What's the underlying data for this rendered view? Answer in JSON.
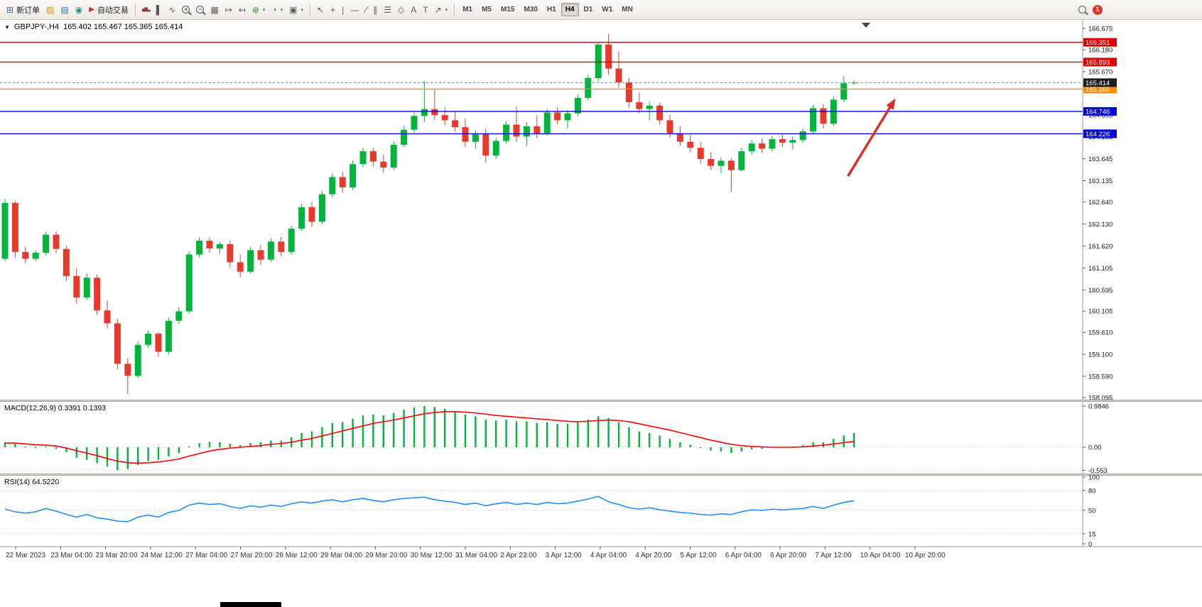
{
  "toolbar": {
    "new_order_label": "新订单",
    "autotrading_label": "自动交易",
    "timeframes": [
      "M1",
      "M5",
      "M15",
      "M30",
      "H1",
      "H4",
      "D1",
      "W1",
      "MN"
    ],
    "selected_timeframe": "H4",
    "notification_count": "1"
  },
  "chart_header": {
    "symbol_period": "GBPJPY-,H4",
    "ohlc_text": "165.402 165.467 165.365 165.414"
  },
  "colors": {
    "bull": "#00b43c",
    "bear": "#e8392a",
    "macd_hist": "#00b43c",
    "macd_signal": "#ff0000",
    "rsi_line": "#1e90ff",
    "current_tag_bg": "#1c1c1c",
    "red_level": "#dd0000",
    "orange_level": "#ff8c00",
    "blue_level": "#0000dd"
  },
  "chart_data": {
    "type": "candlestick",
    "symbol": "GBPJPY-",
    "timeframe": "H4",
    "price_range": {
      "max": 166.675,
      "min": 158.095
    },
    "current_price": 165.414,
    "price_ticks": [
      166.675,
      166.18,
      165.67,
      164.665,
      164.155,
      163.645,
      163.135,
      162.64,
      162.13,
      161.62,
      161.105,
      160.595,
      160.105,
      159.61,
      159.1,
      158.59,
      158.095
    ],
    "hlines": [
      {
        "price": 166.351,
        "color": "#dd0000"
      },
      {
        "price": 165.893,
        "color": "#dd0000"
      },
      {
        "price": 165.265,
        "color": "#ff8c00"
      },
      {
        "price": 164.746,
        "color": "#0000dd"
      },
      {
        "price": 164.226,
        "color": "#0000dd"
      }
    ],
    "time_labels": [
      "22 Mar 2023",
      "23 Mar 04:00",
      "23 Mar 20:00",
      "24 Mar 12:00",
      "27 Mar 04:00",
      "27 Mar 20:00",
      "28 Mar 12:00",
      "29 Mar 04:00",
      "29 Mar 20:00",
      "30 Mar 12:00",
      "31 Mar 04:00",
      "2 Apr 23:00",
      "3 Apr 12:00",
      "4 Apr 04:00",
      "4 Apr 20:00",
      "5 Apr 12:00",
      "6 Apr 04:00",
      "6 Apr 20:00",
      "7 Apr 12:00",
      "10 Apr 04:00",
      "10 Apr 20:00"
    ],
    "ohlc": [
      [
        161.32,
        162.72,
        161.26,
        162.62
      ],
      [
        162.62,
        162.66,
        161.35,
        161.48
      ],
      [
        161.48,
        161.6,
        161.22,
        161.32
      ],
      [
        161.32,
        161.52,
        161.26,
        161.46
      ],
      [
        161.46,
        161.95,
        161.4,
        161.88
      ],
      [
        161.88,
        161.96,
        161.45,
        161.55
      ],
      [
        161.55,
        161.62,
        160.8,
        160.92
      ],
      [
        160.92,
        161.1,
        160.28,
        160.42
      ],
      [
        160.42,
        160.98,
        160.36,
        160.88
      ],
      [
        160.88,
        160.95,
        160.02,
        160.12
      ],
      [
        160.12,
        160.35,
        159.7,
        159.82
      ],
      [
        159.82,
        159.92,
        158.75,
        158.88
      ],
      [
        158.88,
        159.0,
        158.18,
        158.6
      ],
      [
        158.6,
        159.4,
        158.55,
        159.32
      ],
      [
        159.32,
        159.65,
        159.25,
        159.58
      ],
      [
        159.58,
        159.62,
        159.05,
        159.16
      ],
      [
        159.16,
        159.95,
        159.1,
        159.88
      ],
      [
        159.88,
        160.2,
        159.8,
        160.1
      ],
      [
        160.1,
        161.5,
        160.05,
        161.42
      ],
      [
        161.42,
        161.82,
        161.35,
        161.74
      ],
      [
        161.74,
        161.82,
        161.46,
        161.56
      ],
      [
        161.56,
        161.72,
        161.44,
        161.66
      ],
      [
        161.66,
        161.74,
        161.12,
        161.24
      ],
      [
        161.24,
        161.42,
        160.9,
        161.02
      ],
      [
        161.02,
        161.6,
        160.98,
        161.52
      ],
      [
        161.52,
        161.64,
        161.18,
        161.3
      ],
      [
        161.3,
        161.8,
        161.25,
        161.72
      ],
      [
        161.72,
        161.84,
        161.38,
        161.48
      ],
      [
        161.48,
        162.1,
        161.42,
        162.02
      ],
      [
        162.02,
        162.6,
        161.97,
        162.52
      ],
      [
        162.52,
        162.64,
        162.06,
        162.18
      ],
      [
        162.18,
        162.9,
        162.12,
        162.82
      ],
      [
        162.82,
        163.3,
        162.74,
        163.22
      ],
      [
        163.22,
        163.34,
        162.86,
        162.98
      ],
      [
        162.98,
        163.6,
        162.92,
        163.52
      ],
      [
        163.52,
        163.9,
        163.44,
        163.82
      ],
      [
        163.82,
        163.9,
        163.46,
        163.58
      ],
      [
        163.58,
        163.74,
        163.32,
        163.44
      ],
      [
        163.44,
        164.05,
        163.38,
        163.97
      ],
      [
        163.97,
        164.4,
        163.92,
        164.32
      ],
      [
        164.32,
        164.72,
        164.25,
        164.64
      ],
      [
        164.64,
        165.45,
        164.5,
        164.8
      ],
      [
        164.8,
        165.25,
        164.55,
        164.66
      ],
      [
        164.66,
        164.84,
        164.42,
        164.54
      ],
      [
        164.54,
        164.74,
        164.28,
        164.38
      ],
      [
        164.38,
        164.58,
        163.92,
        164.04
      ],
      [
        164.04,
        164.3,
        163.88,
        164.22
      ],
      [
        164.22,
        164.34,
        163.56,
        163.72
      ],
      [
        163.72,
        164.14,
        163.64,
        164.06
      ],
      [
        164.06,
        164.52,
        164.0,
        164.44
      ],
      [
        164.44,
        164.86,
        164.04,
        164.16
      ],
      [
        164.16,
        164.5,
        163.94,
        164.4
      ],
      [
        164.4,
        164.64,
        164.12,
        164.24
      ],
      [
        164.24,
        164.8,
        164.18,
        164.72
      ],
      [
        164.72,
        164.84,
        164.44,
        164.54
      ],
      [
        164.54,
        164.78,
        164.34,
        164.7
      ],
      [
        164.7,
        165.14,
        164.64,
        165.06
      ],
      [
        165.06,
        165.6,
        165.0,
        165.52
      ],
      [
        165.52,
        166.36,
        165.44,
        166.3
      ],
      [
        166.3,
        166.55,
        165.6,
        165.74
      ],
      [
        165.74,
        166.14,
        165.3,
        165.42
      ],
      [
        165.42,
        165.52,
        164.84,
        164.96
      ],
      [
        164.96,
        165.18,
        164.7,
        164.8
      ],
      [
        164.8,
        164.97,
        164.54,
        164.88
      ],
      [
        164.88,
        164.94,
        164.44,
        164.54
      ],
      [
        164.54,
        164.66,
        164.14,
        164.24
      ],
      [
        164.24,
        164.4,
        163.94,
        164.04
      ],
      [
        164.04,
        164.2,
        163.8,
        163.9
      ],
      [
        163.9,
        164.04,
        163.54,
        163.64
      ],
      [
        163.64,
        163.8,
        163.38,
        163.48
      ],
      [
        163.48,
        163.68,
        163.3,
        163.6
      ],
      [
        163.6,
        163.66,
        162.88,
        163.38
      ],
      [
        163.38,
        163.9,
        163.34,
        163.82
      ],
      [
        163.82,
        164.08,
        163.74,
        164.0
      ],
      [
        164.0,
        164.12,
        163.78,
        163.88
      ],
      [
        163.88,
        164.18,
        163.82,
        164.1
      ],
      [
        164.1,
        164.22,
        163.92,
        164.02
      ],
      [
        164.02,
        164.16,
        163.86,
        164.08
      ],
      [
        164.08,
        164.35,
        164.02,
        164.28
      ],
      [
        164.28,
        164.9,
        164.22,
        164.82
      ],
      [
        164.82,
        164.92,
        164.35,
        164.46
      ],
      [
        164.46,
        165.1,
        164.4,
        165.02
      ],
      [
        165.02,
        165.56,
        164.96,
        165.4
      ],
      [
        165.402,
        165.467,
        165.365,
        165.414
      ]
    ],
    "annotations": [
      {
        "type": "arrow",
        "color": "#e02b20",
        "from_bar": 82.4,
        "from_price": 163.24,
        "to_bar": 86.9,
        "to_price": 164.99
      }
    ]
  },
  "macd": {
    "label": "MACD(12,26,9) 0.3391 0.1393",
    "axis_labels": [
      {
        "text": "0.9846",
        "value": 0.9846
      },
      {
        "text": "0.00",
        "value": 0
      },
      {
        "text": "-0.553",
        "value": -0.553
      }
    ],
    "histogram": [
      0.12,
      0.08,
      0.02,
      -0.02,
      0.02,
      -0.04,
      -0.12,
      -0.25,
      -0.3,
      -0.38,
      -0.46,
      -0.55,
      -0.52,
      -0.42,
      -0.33,
      -0.3,
      -0.22,
      -0.14,
      0.02,
      0.1,
      0.13,
      0.12,
      0.08,
      0.05,
      0.1,
      0.12,
      0.16,
      0.16,
      0.24,
      0.34,
      0.38,
      0.48,
      0.58,
      0.6,
      0.68,
      0.76,
      0.78,
      0.76,
      0.82,
      0.9,
      0.95,
      0.9846,
      0.96,
      0.92,
      0.86,
      0.78,
      0.74,
      0.66,
      0.64,
      0.66,
      0.62,
      0.62,
      0.58,
      0.6,
      0.56,
      0.56,
      0.6,
      0.66,
      0.74,
      0.7,
      0.6,
      0.48,
      0.38,
      0.34,
      0.28,
      0.2,
      0.12,
      0.06,
      -0.02,
      -0.08,
      -0.1,
      -0.14,
      -0.1,
      -0.05,
      -0.04,
      0.0,
      0.0,
      0.02,
      0.05,
      0.12,
      0.12,
      0.2,
      0.28,
      0.3391
    ],
    "signal": [
      0.1,
      0.1,
      0.08,
      0.06,
      0.05,
      0.03,
      -0.02,
      -0.08,
      -0.14,
      -0.2,
      -0.27,
      -0.33,
      -0.37,
      -0.38,
      -0.37,
      -0.35,
      -0.32,
      -0.28,
      -0.21,
      -0.15,
      -0.09,
      -0.05,
      -0.02,
      0.0,
      0.02,
      0.04,
      0.07,
      0.09,
      0.12,
      0.17,
      0.21,
      0.27,
      0.33,
      0.39,
      0.45,
      0.51,
      0.57,
      0.61,
      0.65,
      0.7,
      0.75,
      0.8,
      0.83,
      0.85,
      0.85,
      0.84,
      0.82,
      0.79,
      0.76,
      0.74,
      0.72,
      0.7,
      0.68,
      0.66,
      0.64,
      0.62,
      0.61,
      0.62,
      0.64,
      0.65,
      0.64,
      0.61,
      0.56,
      0.51,
      0.46,
      0.41,
      0.35,
      0.29,
      0.23,
      0.17,
      0.12,
      0.07,
      0.04,
      0.02,
      0.01,
      0.0,
      0.0,
      0.0,
      0.01,
      0.03,
      0.05,
      0.08,
      0.11,
      0.1393
    ]
  },
  "rsi": {
    "label": "RSI(14) 64.5220",
    "levels": [
      80,
      50,
      15
    ],
    "axis_labels": [
      {
        "text": "100",
        "value": 100
      },
      {
        "text": "80",
        "value": 80
      },
      {
        "text": "50",
        "value": 50
      },
      {
        "text": "15",
        "value": 15
      },
      {
        "text": "0",
        "value": 0
      }
    ],
    "values": [
      52,
      48,
      46,
      48,
      53,
      49,
      44,
      40,
      44,
      39,
      37,
      34,
      33,
      40,
      43,
      40,
      47,
      50,
      58,
      61,
      59,
      60,
      56,
      53,
      57,
      55,
      58,
      56,
      60,
      63,
      61,
      64,
      66,
      63,
      66,
      68,
      65,
      63,
      66,
      68,
      69,
      70,
      66,
      64,
      62,
      59,
      61,
      57,
      60,
      62,
      59,
      61,
      59,
      62,
      60,
      61,
      64,
      67,
      71,
      63,
      59,
      54,
      52,
      54,
      51,
      49,
      47,
      46,
      44,
      43,
      45,
      44,
      48,
      51,
      50,
      52,
      51,
      52,
      53,
      56,
      53,
      58,
      62,
      64.52
    ]
  }
}
